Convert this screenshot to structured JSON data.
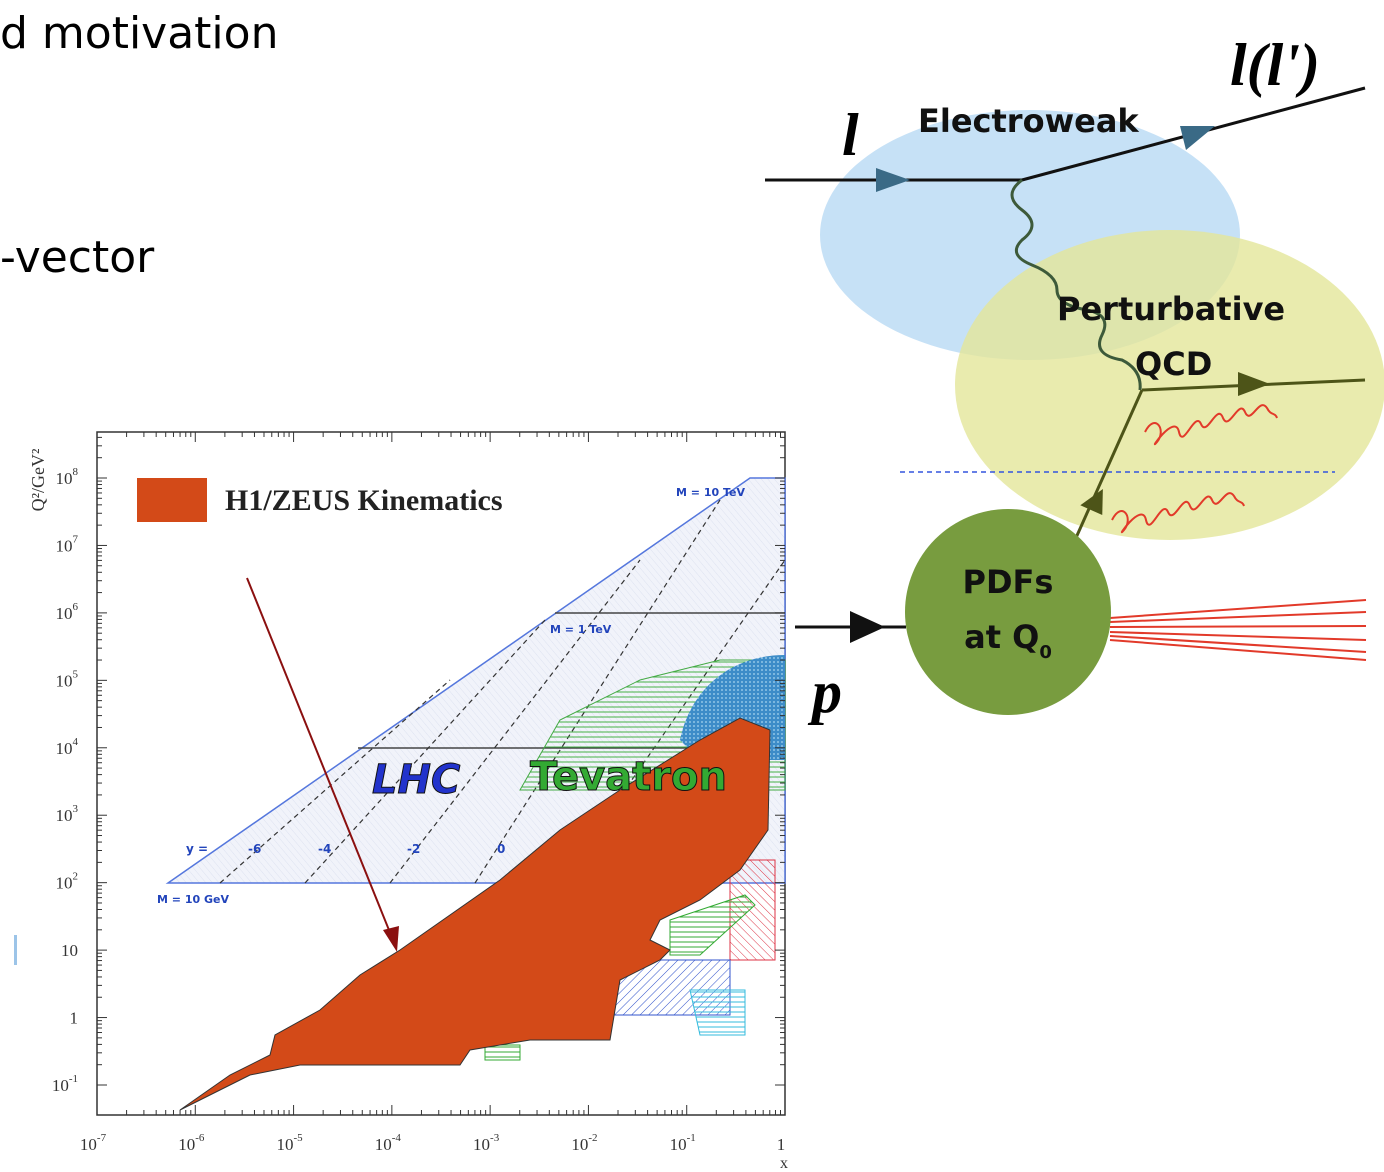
{
  "slide": {
    "title_fragment": "d motivation",
    "bullet_fragment": "-vector"
  },
  "plot": {
    "legend": "H1/ZEUS Kinematics",
    "y_axis_label": "Q²/GeV²",
    "x_axis_label": "x",
    "x_tick_labels": [
      {
        "base": "10",
        "exp": "-7"
      },
      {
        "base": "10",
        "exp": "-6"
      },
      {
        "base": "10",
        "exp": "-5"
      },
      {
        "base": "10",
        "exp": "-4"
      },
      {
        "base": "10",
        "exp": "-3"
      },
      {
        "base": "10",
        "exp": "-2"
      },
      {
        "base": "10",
        "exp": "-1"
      },
      {
        "base": "1"
      }
    ],
    "y_tick_labels": [
      {
        "base": "10",
        "exp": "8"
      },
      {
        "base": "10",
        "exp": "7"
      },
      {
        "base": "10",
        "exp": "6"
      },
      {
        "base": "10",
        "exp": "5"
      },
      {
        "base": "10",
        "exp": "4"
      },
      {
        "base": "10",
        "exp": "3"
      },
      {
        "base": "10",
        "exp": "2"
      },
      {
        "base": "10"
      },
      {
        "base": "1"
      },
      {
        "base": "10",
        "exp": "-1"
      }
    ],
    "labels": {
      "lhc": "LHC",
      "tevatron": "Tevatron",
      "m_10tev": "M = 10 TeV",
      "m_1tev": "M = 1 TeV",
      "m_10gev": "M = 10 GeV",
      "y_eq": "y =",
      "rapidities": [
        "-6",
        "-4",
        "-2",
        "0"
      ]
    }
  },
  "diagram": {
    "lepton_in": "l",
    "lepton_out": "l(l')",
    "electroweak": "Electroweak",
    "perturbative": "Perturbative",
    "qcd": "QCD",
    "pdfs": "PDFs",
    "at_q0": {
      "text": "at Q",
      "sub": "0"
    },
    "proton": "p"
  }
}
